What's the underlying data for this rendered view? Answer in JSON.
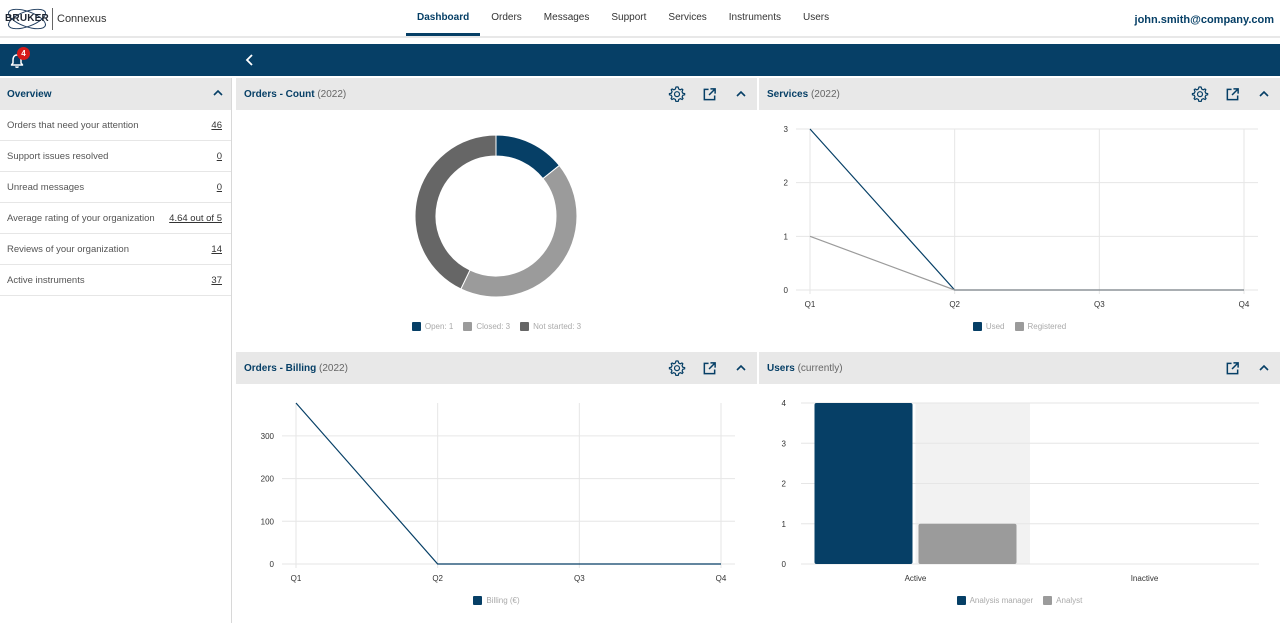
{
  "app": {
    "brand": "BRUKER",
    "product": "Connexus"
  },
  "nav": {
    "items": [
      "Dashboard",
      "Orders",
      "Messages",
      "Support",
      "Services",
      "Instruments",
      "Users"
    ],
    "active": "Dashboard"
  },
  "user": {
    "email": "john.smith@company.com"
  },
  "notifications": {
    "count": "4"
  },
  "overview": {
    "title": "Overview",
    "rows": [
      {
        "label": "Orders that need your attention",
        "value": "46"
      },
      {
        "label": "Support issues resolved",
        "value": "0"
      },
      {
        "label": "Unread messages",
        "value": "0"
      },
      {
        "label": "Average rating of your organization",
        "value": "4.64 out of 5"
      },
      {
        "label": "Reviews of your organization",
        "value": "14"
      },
      {
        "label": "Active instruments",
        "value": "37"
      }
    ]
  },
  "panels": {
    "orders_count": {
      "title": "Orders - Count",
      "subtitle": "(2022)"
    },
    "services": {
      "title": "Services",
      "subtitle": "(2022)"
    },
    "orders_billing": {
      "title": "Orders - Billing",
      "subtitle": "(2022)"
    },
    "users": {
      "title": "Users",
      "subtitle": "(currently)"
    }
  },
  "colors": {
    "primary": "#063f66",
    "light_gray": "#9b9b9b",
    "dark_gray": "#666666",
    "badge": "#d51a1a"
  },
  "icons": [
    "bell-icon",
    "chevron-left-icon",
    "chevron-up-icon",
    "gear-icon",
    "open-external-icon"
  ],
  "chart_data": [
    {
      "type": "pie",
      "labels": [
        "Open: 1",
        "Closed: 3",
        "Not started: 3"
      ],
      "values": [
        1,
        3,
        3
      ],
      "colors": [
        "#063f66",
        "#9b9b9b",
        "#666666"
      ],
      "legend": "bottom"
    },
    {
      "type": "line",
      "x": [
        "Q1",
        "Q2",
        "Q3",
        "Q4"
      ],
      "series": [
        {
          "name": "Used",
          "values": [
            3,
            0,
            0,
            0
          ],
          "color": "#063f66"
        },
        {
          "name": "Registered",
          "values": [
            1,
            0,
            0,
            0
          ],
          "color": "#9b9b9b"
        }
      ],
      "ylim": [
        0,
        3
      ],
      "yticks": [
        0,
        1,
        2,
        3
      ],
      "grid": true,
      "legend": "bottom"
    },
    {
      "type": "line",
      "x": [
        "Q1",
        "Q2",
        "Q3",
        "Q4"
      ],
      "series": [
        {
          "name": "Billing (€)",
          "values": [
            377,
            0,
            0,
            0
          ],
          "color": "#063f66"
        }
      ],
      "ylim": [
        0,
        377
      ],
      "yticks": [
        0,
        100,
        200,
        300
      ],
      "grid": true,
      "legend": "bottom"
    },
    {
      "type": "bar",
      "categories": [
        "Active",
        "Inactive"
      ],
      "series": [
        {
          "name": "Analysis manager",
          "values": [
            4,
            0
          ],
          "color": "#063f66"
        },
        {
          "name": "Analyst",
          "values": [
            1,
            0
          ],
          "color": "#9b9b9b"
        }
      ],
      "ylim": [
        0,
        4
      ],
      "yticks": [
        0,
        1,
        2,
        3,
        4
      ],
      "grid": true,
      "legend": "bottom"
    }
  ]
}
